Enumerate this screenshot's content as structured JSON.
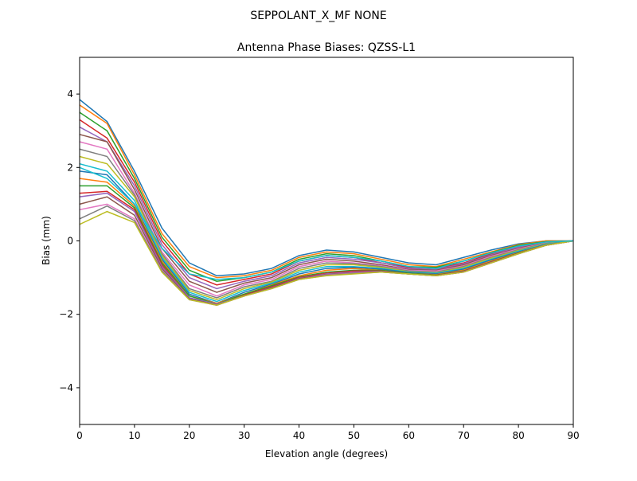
{
  "chart_data": {
    "type": "line",
    "suptitle": "SEPPOLANT_X_MF  NONE",
    "title": "Antenna Phase Biases: QZSS-L1",
    "xlabel": "Elevation angle (degrees)",
    "ylabel": "Bias (mm)",
    "xlim": [
      0,
      90
    ],
    "ylim": [
      -5,
      5
    ],
    "xticks": [
      0,
      10,
      20,
      30,
      40,
      50,
      60,
      70,
      80,
      90
    ],
    "yticks": [
      -4,
      -2,
      0,
      2,
      4
    ],
    "ytick_labels": [
      "−4",
      "−2",
      "0",
      "2",
      "4"
    ],
    "grid": false,
    "colors": [
      "#1f77b4",
      "#ff7f0e",
      "#2ca02c",
      "#d62728",
      "#9467bd",
      "#8c564b",
      "#e377c2",
      "#7f7f7f",
      "#bcbd22",
      "#17becf"
    ],
    "x": [
      0,
      5,
      10,
      15,
      20,
      25,
      30,
      35,
      40,
      45,
      50,
      55,
      60,
      65,
      70,
      75,
      80,
      85,
      90
    ],
    "series": [
      {
        "values": [
          3.85,
          3.25,
          1.9,
          0.35,
          -0.6,
          -0.95,
          -0.9,
          -0.75,
          -0.4,
          -0.25,
          -0.3,
          -0.45,
          -0.6,
          -0.65,
          -0.45,
          -0.25,
          -0.08,
          0,
          0
        ]
      },
      {
        "values": [
          3.7,
          3.2,
          1.8,
          0.2,
          -0.7,
          -1.0,
          -0.95,
          -0.8,
          -0.45,
          -0.3,
          -0.35,
          -0.5,
          -0.65,
          -0.7,
          -0.5,
          -0.3,
          -0.1,
          0,
          0
        ]
      },
      {
        "values": [
          3.5,
          3.0,
          1.7,
          0.1,
          -0.8,
          -1.1,
          -1.0,
          -0.85,
          -0.5,
          -0.35,
          -0.4,
          -0.55,
          -0.7,
          -0.72,
          -0.55,
          -0.32,
          -0.12,
          -0.02,
          0
        ]
      },
      {
        "values": [
          3.3,
          2.8,
          1.6,
          0.0,
          -0.9,
          -1.2,
          -1.05,
          -0.9,
          -0.55,
          -0.4,
          -0.45,
          -0.6,
          -0.72,
          -0.75,
          -0.6,
          -0.35,
          -0.15,
          -0.03,
          0
        ]
      },
      {
        "values": [
          3.1,
          2.7,
          1.5,
          -0.1,
          -1.0,
          -1.3,
          -1.1,
          -0.95,
          -0.6,
          -0.45,
          -0.5,
          -0.6,
          -0.75,
          -0.78,
          -0.62,
          -0.38,
          -0.17,
          -0.04,
          0
        ]
      },
      {
        "values": [
          2.9,
          2.7,
          1.4,
          -0.2,
          -1.1,
          -1.4,
          -1.15,
          -1.0,
          -0.65,
          -0.5,
          -0.55,
          -0.65,
          -0.78,
          -0.8,
          -0.65,
          -0.4,
          -0.2,
          -0.05,
          0
        ]
      },
      {
        "values": [
          2.7,
          2.5,
          1.3,
          -0.3,
          -1.2,
          -1.5,
          -1.2,
          -1.05,
          -0.7,
          -0.55,
          -0.6,
          -0.68,
          -0.8,
          -0.82,
          -0.68,
          -0.42,
          -0.22,
          -0.06,
          0
        ]
      },
      {
        "values": [
          2.5,
          2.3,
          1.25,
          -0.35,
          -1.3,
          -1.55,
          -1.25,
          -1.1,
          -0.75,
          -0.6,
          -0.62,
          -0.7,
          -0.82,
          -0.85,
          -0.7,
          -0.45,
          -0.24,
          -0.07,
          0
        ]
      },
      {
        "values": [
          2.3,
          2.1,
          1.2,
          -0.4,
          -1.35,
          -1.6,
          -1.3,
          -1.12,
          -0.8,
          -0.65,
          -0.65,
          -0.72,
          -0.84,
          -0.87,
          -0.72,
          -0.47,
          -0.26,
          -0.08,
          0
        ]
      },
      {
        "values": [
          2.1,
          1.9,
          1.1,
          -0.45,
          -1.4,
          -1.65,
          -1.35,
          -1.15,
          -0.85,
          -0.7,
          -0.7,
          -0.75,
          -0.85,
          -0.88,
          -0.75,
          -0.5,
          -0.28,
          -0.09,
          0
        ]
      },
      {
        "values": [
          1.9,
          1.8,
          1.0,
          -0.5,
          -1.45,
          -1.7,
          -1.4,
          -1.18,
          -0.9,
          -0.75,
          -0.72,
          -0.77,
          -0.86,
          -0.9,
          -0.77,
          -0.52,
          -0.3,
          -0.1,
          0
        ]
      },
      {
        "values": [
          1.7,
          1.6,
          0.95,
          -0.55,
          -1.5,
          -1.7,
          -1.45,
          -1.2,
          -0.95,
          -0.8,
          -0.75,
          -0.8,
          -0.88,
          -0.92,
          -0.8,
          -0.55,
          -0.32,
          -0.11,
          0
        ]
      },
      {
        "values": [
          1.5,
          1.5,
          0.9,
          -0.6,
          -1.5,
          -1.72,
          -1.45,
          -1.22,
          -0.98,
          -0.85,
          -0.8,
          -0.8,
          -0.88,
          -0.93,
          -0.82,
          -0.57,
          -0.33,
          -0.12,
          0
        ]
      },
      {
        "values": [
          1.3,
          1.35,
          0.85,
          -0.65,
          -1.55,
          -1.75,
          -1.48,
          -1.25,
          -1.0,
          -0.88,
          -0.82,
          -0.82,
          -0.9,
          -0.94,
          -0.83,
          -0.58,
          -0.34,
          -0.12,
          0
        ]
      },
      {
        "values": [
          1.2,
          1.3,
          0.8,
          -0.7,
          -1.55,
          -1.72,
          -1.5,
          -1.27,
          -1.02,
          -0.9,
          -0.85,
          -0.83,
          -0.9,
          -0.95,
          -0.84,
          -0.59,
          -0.35,
          -0.12,
          0
        ]
      },
      {
        "values": [
          1.0,
          1.2,
          0.7,
          -0.75,
          -1.58,
          -1.74,
          -1.5,
          -1.28,
          -1.03,
          -0.92,
          -0.87,
          -0.84,
          -0.9,
          -0.95,
          -0.85,
          -0.6,
          -0.35,
          -0.12,
          0
        ]
      },
      {
        "values": [
          0.85,
          1.0,
          0.6,
          -0.8,
          -1.6,
          -1.75,
          -1.5,
          -1.3,
          -1.05,
          -0.93,
          -0.88,
          -0.85,
          -0.9,
          -0.95,
          -0.85,
          -0.6,
          -0.35,
          -0.12,
          0
        ]
      },
      {
        "values": [
          0.6,
          0.95,
          0.55,
          -0.82,
          -1.6,
          -1.75,
          -1.5,
          -1.3,
          -1.05,
          -0.94,
          -0.89,
          -0.85,
          -0.9,
          -0.95,
          -0.85,
          -0.6,
          -0.35,
          -0.12,
          0
        ]
      },
      {
        "values": [
          0.45,
          0.8,
          0.5,
          -0.85,
          -1.6,
          -1.75,
          -1.5,
          -1.3,
          -1.05,
          -0.95,
          -0.9,
          -0.85,
          -0.9,
          -0.95,
          -0.85,
          -0.6,
          -0.35,
          -0.12,
          0
        ]
      },
      {
        "values": [
          2.0,
          1.7,
          1.0,
          -0.2,
          -0.9,
          -1.05,
          -1.0,
          -0.85,
          -0.55,
          -0.4,
          -0.45,
          -0.55,
          -0.7,
          -0.75,
          -0.55,
          -0.33,
          -0.14,
          -0.03,
          0
        ]
      }
    ]
  }
}
